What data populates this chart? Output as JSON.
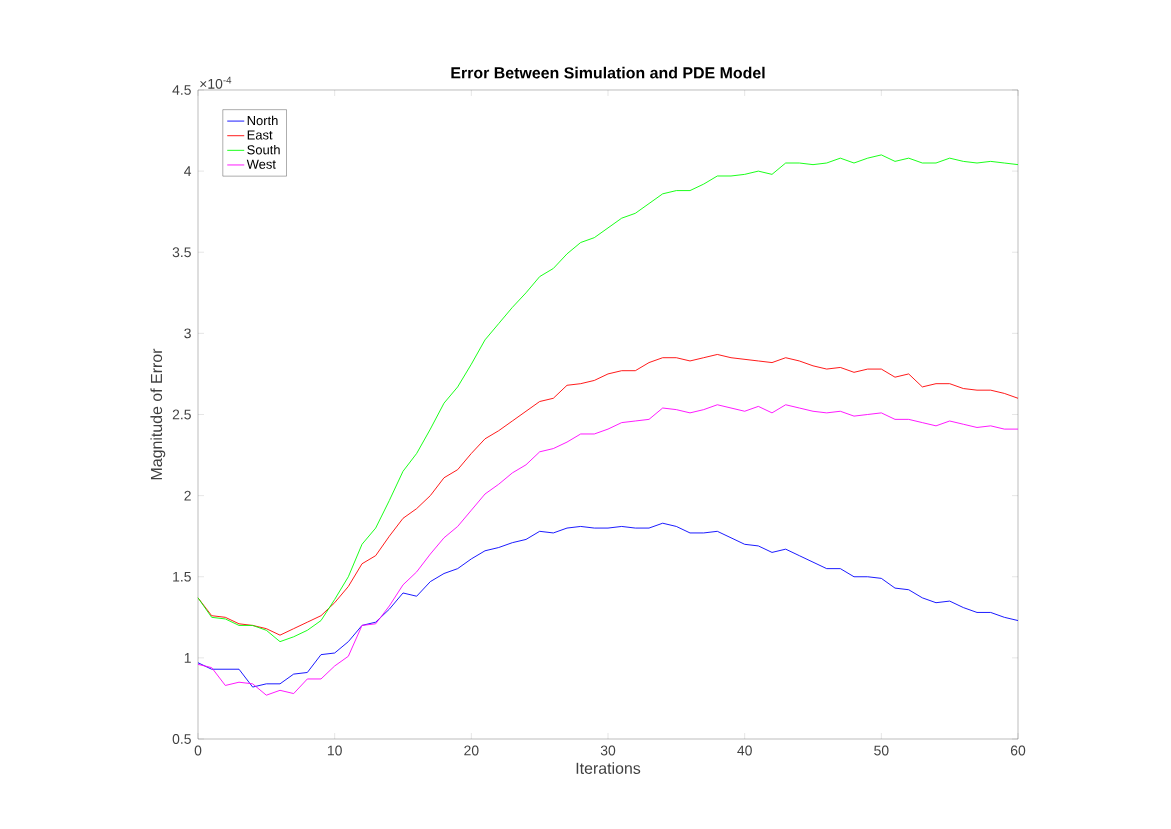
{
  "chart_data": {
    "type": "line",
    "title": "Error Between Simulation and PDE Model",
    "xlabel": "Iterations",
    "ylabel": "Magnitude of Error",
    "annotations": [
      "×10$^{-4}$"
    ],
    "x": [
      0,
      1,
      2,
      3,
      4,
      5,
      6,
      7,
      8,
      9,
      10,
      11,
      12,
      13,
      14,
      15,
      16,
      17,
      18,
      19,
      20,
      21,
      22,
      23,
      24,
      25,
      26,
      27,
      28,
      29,
      30,
      31,
      32,
      33,
      34,
      35,
      36,
      37,
      38,
      39,
      40,
      41,
      42,
      43,
      44,
      45,
      46,
      47,
      48,
      49,
      50,
      51,
      52,
      53,
      54,
      55,
      56,
      57,
      58,
      59,
      60
    ],
    "series": [
      {
        "name": "North",
        "color": "#0000ff",
        "values": [
          0.97,
          0.93,
          0.93,
          0.93,
          0.82,
          0.84,
          0.84,
          0.9,
          0.91,
          1.02,
          1.03,
          1.1,
          1.2,
          1.22,
          1.3,
          1.4,
          1.38,
          1.47,
          1.52,
          1.55,
          1.61,
          1.66,
          1.68,
          1.71,
          1.73,
          1.78,
          1.77,
          1.8,
          1.81,
          1.8,
          1.8,
          1.81,
          1.8,
          1.8,
          1.83,
          1.81,
          1.77,
          1.77,
          1.78,
          1.74,
          1.7,
          1.69,
          1.65,
          1.67,
          1.63,
          1.59,
          1.55,
          1.55,
          1.5,
          1.5,
          1.49,
          1.43,
          1.42,
          1.37,
          1.34,
          1.35,
          1.31,
          1.28,
          1.28,
          1.25,
          1.23
        ]
      },
      {
        "name": "East",
        "color": "#ff0000",
        "values": [
          1.37,
          1.26,
          1.25,
          1.21,
          1.2,
          1.18,
          1.14,
          1.18,
          1.22,
          1.26,
          1.34,
          1.44,
          1.58,
          1.63,
          1.75,
          1.86,
          1.92,
          2.0,
          2.11,
          2.16,
          2.26,
          2.35,
          2.4,
          2.46,
          2.52,
          2.58,
          2.6,
          2.68,
          2.69,
          2.71,
          2.75,
          2.77,
          2.77,
          2.82,
          2.85,
          2.85,
          2.83,
          2.85,
          2.87,
          2.85,
          2.84,
          2.83,
          2.82,
          2.85,
          2.83,
          2.8,
          2.78,
          2.79,
          2.76,
          2.78,
          2.78,
          2.73,
          2.75,
          2.67,
          2.69,
          2.69,
          2.66,
          2.65,
          2.65,
          2.63,
          2.6
        ]
      },
      {
        "name": "South",
        "color": "#00ff00",
        "values": [
          1.37,
          1.25,
          1.24,
          1.2,
          1.2,
          1.17,
          1.1,
          1.13,
          1.17,
          1.23,
          1.36,
          1.5,
          1.7,
          1.8,
          1.97,
          2.15,
          2.26,
          2.41,
          2.57,
          2.67,
          2.81,
          2.96,
          3.06,
          3.16,
          3.25,
          3.35,
          3.4,
          3.49,
          3.56,
          3.59,
          3.65,
          3.71,
          3.74,
          3.8,
          3.86,
          3.88,
          3.88,
          3.92,
          3.97,
          3.97,
          3.98,
          4.0,
          3.98,
          4.05,
          4.05,
          4.04,
          4.05,
          4.08,
          4.05,
          4.08,
          4.1,
          4.06,
          4.08,
          4.05,
          4.05,
          4.08,
          4.06,
          4.05,
          4.06,
          4.05,
          4.04
        ]
      },
      {
        "name": "West",
        "color": "#ff00ff",
        "values": [
          0.96,
          0.94,
          0.83,
          0.85,
          0.84,
          0.77,
          0.8,
          0.78,
          0.87,
          0.87,
          0.95,
          1.01,
          1.2,
          1.21,
          1.32,
          1.45,
          1.53,
          1.64,
          1.74,
          1.81,
          1.91,
          2.01,
          2.07,
          2.14,
          2.19,
          2.27,
          2.29,
          2.33,
          2.38,
          2.38,
          2.41,
          2.45,
          2.46,
          2.47,
          2.54,
          2.53,
          2.51,
          2.53,
          2.56,
          2.54,
          2.52,
          2.55,
          2.51,
          2.56,
          2.54,
          2.52,
          2.51,
          2.52,
          2.49,
          2.5,
          2.51,
          2.47,
          2.47,
          2.45,
          2.43,
          2.46,
          2.44,
          2.42,
          2.43,
          2.41,
          2.41
        ]
      }
    ],
    "xlim": [
      0,
      60
    ],
    "xticks": [
      0,
      10,
      20,
      30,
      40,
      50,
      60
    ],
    "ylim": [
      0.5,
      4.5
    ],
    "yticks": [
      0.5,
      1,
      1.5,
      2,
      2.5,
      3,
      3.5,
      4,
      4.5
    ],
    "grid": false,
    "legend": "top left",
    "line_style": "solid",
    "marker": "none"
  }
}
